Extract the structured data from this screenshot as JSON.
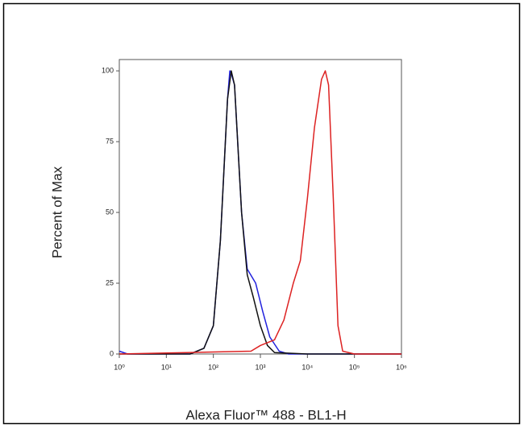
{
  "chart_data": {
    "type": "line",
    "xlabel": "Alexa Fluor™ 488 - BL1-H",
    "ylabel": "Percent of Max",
    "xscale": "log",
    "xlim": [
      1,
      1000000
    ],
    "xticks": [
      {
        "value": 1,
        "label": "10⁰"
      },
      {
        "value": 10,
        "label": "10¹"
      },
      {
        "value": 100,
        "label": "10²"
      },
      {
        "value": 1000,
        "label": "10³"
      },
      {
        "value": 10000,
        "label": "10⁴"
      },
      {
        "value": 100000,
        "label": "10⁵"
      },
      {
        "value": 1000000,
        "label": "10⁶"
      }
    ],
    "ylim": [
      0,
      104
    ],
    "yticks": [
      0,
      25,
      50,
      75,
      100
    ],
    "series": [
      {
        "color": "#2222dd",
        "x": [
          1,
          1.5,
          32,
          63,
          100,
          141,
          200,
          224,
          240,
          282,
          398,
          525,
          794,
          1122,
          1585,
          2512,
          3981,
          1000000
        ],
        "values": [
          1,
          0,
          0,
          2,
          10,
          40,
          90,
          100,
          99,
          95,
          50,
          30,
          25,
          15,
          6,
          1,
          0,
          0
        ]
      },
      {
        "color": "#111111",
        "x": [
          1,
          32,
          63,
          100,
          141,
          200,
          240,
          282,
          398,
          525,
          708,
          1000,
          1413,
          2000,
          10000,
          1000000
        ],
        "values": [
          0,
          0,
          2,
          10,
          40,
          90,
          100,
          95,
          50,
          28,
          20,
          10,
          3,
          0.5,
          0,
          0
        ]
      },
      {
        "color": "#dd2222",
        "x": [
          1,
          631,
          1000,
          1995,
          3162,
          5012,
          7079,
          10000,
          14125,
          19953,
          24000,
          28184,
          35481,
          44668,
          56234,
          100000,
          1000000
        ],
        "values": [
          0,
          1,
          3,
          5,
          12,
          25,
          33,
          55,
          80,
          97,
          100,
          95,
          55,
          10,
          1,
          0,
          0
        ]
      }
    ]
  }
}
